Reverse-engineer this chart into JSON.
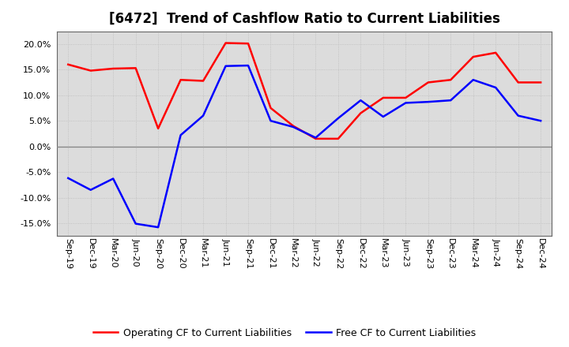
{
  "title": "[6472]  Trend of Cashflow Ratio to Current Liabilities",
  "x_labels": [
    "Sep-19",
    "Dec-19",
    "Mar-20",
    "Jun-20",
    "Sep-20",
    "Dec-20",
    "Mar-21",
    "Jun-21",
    "Sep-21",
    "Dec-21",
    "Mar-22",
    "Jun-22",
    "Sep-22",
    "Dec-22",
    "Mar-23",
    "Jun-23",
    "Sep-23",
    "Dec-23",
    "Mar-24",
    "Jun-24",
    "Sep-24",
    "Dec-24"
  ],
  "operating_cf": [
    16.0,
    14.8,
    15.2,
    15.3,
    3.5,
    13.0,
    12.8,
    20.2,
    20.1,
    7.5,
    4.0,
    1.5,
    1.5,
    6.5,
    9.5,
    9.5,
    12.5,
    13.0,
    17.5,
    18.3,
    12.5,
    12.5
  ],
  "free_cf": [
    -6.2,
    -8.5,
    -6.3,
    -15.1,
    -15.8,
    2.2,
    6.0,
    15.7,
    15.8,
    5.0,
    3.8,
    1.7,
    5.5,
    9.0,
    5.8,
    8.5,
    8.7,
    9.0,
    13.0,
    11.5,
    6.0,
    5.0
  ],
  "operating_color": "#FF0000",
  "free_color": "#0000FF",
  "ylim": [
    -17.5,
    22.5
  ],
  "yticks": [
    -15.0,
    -10.0,
    -5.0,
    0.0,
    5.0,
    10.0,
    15.0,
    20.0
  ],
  "legend_operating": "Operating CF to Current Liabilities",
  "legend_free": "Free CF to Current Liabilities",
  "background_color": "#FFFFFF",
  "plot_bg_color": "#DCDCDC",
  "grid_color": "#BBBBBB",
  "line_width": 1.8,
  "title_fontsize": 12,
  "tick_fontsize": 8,
  "legend_fontsize": 9
}
